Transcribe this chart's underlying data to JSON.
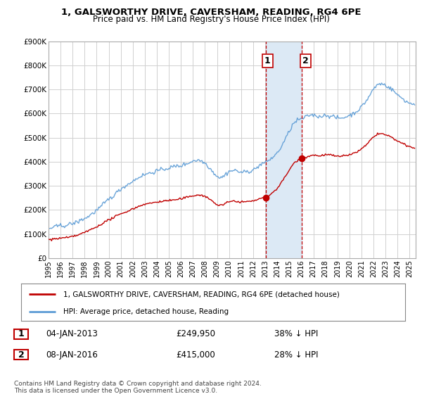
{
  "title": "1, GALSWORTHY DRIVE, CAVERSHAM, READING, RG4 6PE",
  "subtitle": "Price paid vs. HM Land Registry's House Price Index (HPI)",
  "ylabel_max": 900000,
  "yticks": [
    0,
    100000,
    200000,
    300000,
    400000,
    500000,
    600000,
    700000,
    800000,
    900000
  ],
  "ytick_labels": [
    "£0",
    "£100K",
    "£200K",
    "£300K",
    "£400K",
    "£500K",
    "£600K",
    "£700K",
    "£800K",
    "£900K"
  ],
  "sale1_date": 2013.04,
  "sale1_price": 249950,
  "sale2_date": 2016.04,
  "sale2_price": 415000,
  "hpi_color": "#5b9bd5",
  "price_color": "#c00000",
  "highlight_color": "#dce9f5",
  "background_color": "#ffffff",
  "grid_color": "#d0d0d0",
  "legend_line1": "1, GALSWORTHY DRIVE, CAVERSHAM, READING, RG4 6PE (detached house)",
  "legend_line2": "HPI: Average price, detached house, Reading",
  "footer": "Contains HM Land Registry data © Crown copyright and database right 2024.\nThis data is licensed under the Open Government Licence v3.0.",
  "xmin": 1995.0,
  "xmax": 2025.5
}
